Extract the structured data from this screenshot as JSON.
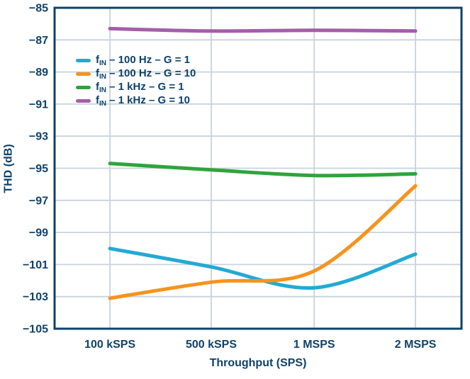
{
  "chart_data": {
    "type": "line",
    "title": "",
    "xlabel": "Throughput (SPS)",
    "ylabel": "THD (dB)",
    "x_categories": [
      "100 kSPS",
      "500 kSPS",
      "1 MSPS",
      "2 MSPS"
    ],
    "ylim": [
      -105,
      -85
    ],
    "y_ticks": [
      -85,
      -87,
      -89,
      -91,
      -93,
      -95,
      -97,
      -99,
      -101,
      -103,
      -105
    ],
    "y_tick_labels": [
      "−85",
      "−87",
      "−89",
      "−91",
      "−93",
      "−95",
      "−97",
      "−99",
      "−101",
      "−103",
      "−105"
    ],
    "grid": true,
    "legend_position": "upper-left-inside",
    "series": [
      {
        "name": "fIN – 100 Hz – G = 1",
        "label_parts": {
          "base": "f",
          "sub": "IN",
          "rest": " – 100 Hz – G = 1"
        },
        "color": "#22aad3",
        "values": [
          -100.0,
          -101.15,
          -102.45,
          -100.35
        ]
      },
      {
        "name": "fIN – 100 Hz – G = 10",
        "label_parts": {
          "base": "f",
          "sub": "IN",
          "rest": " – 100 Hz – G = 10"
        },
        "color": "#f6931d",
        "values": [
          -103.1,
          -102.1,
          -101.4,
          -96.1
        ]
      },
      {
        "name": "fIN – 1 kHz – G = 1",
        "label_parts": {
          "base": "f",
          "sub": "IN",
          "rest": " – 1 kHz – G = 1"
        },
        "color": "#2fa43c",
        "values": [
          -94.7,
          -95.1,
          -95.45,
          -95.35
        ]
      },
      {
        "name": "fIN – 1 kHz – G = 10",
        "label_parts": {
          "base": "f",
          "sub": "IN",
          "rest": " – 1 kHz – G = 10"
        },
        "color": "#a35fa8",
        "values": [
          -86.3,
          -86.45,
          -86.4,
          -86.45
        ]
      }
    ],
    "colors": {
      "axis_and_text": "#0e4269",
      "gridline": "#c8d2de",
      "background": "#ffffff"
    }
  }
}
